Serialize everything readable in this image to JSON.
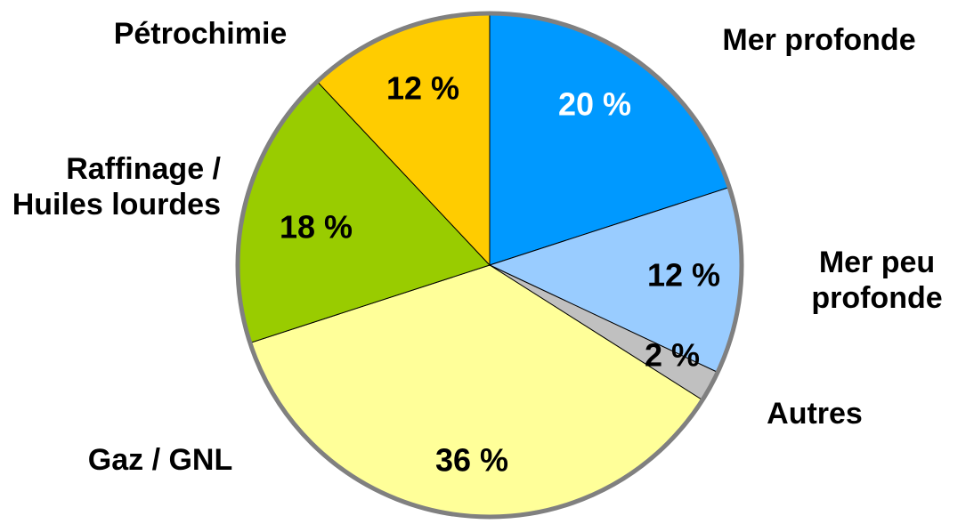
{
  "chart_data": {
    "type": "pie",
    "categories": [
      "Mer profonde",
      "Mer peu profonde",
      "Autres",
      "Gaz / GNL",
      "Raffinage / Huiles lourdes",
      "Pétrochimie"
    ],
    "values": [
      20,
      12,
      2,
      36,
      18,
      12
    ],
    "value_labels": [
      "20 %",
      "12 %",
      "2 %",
      "36 %",
      "18 %",
      "12 %"
    ],
    "colors": [
      "#0099ff",
      "#99ccff",
      "#c0c0c0",
      "#ffff99",
      "#99cc00",
      "#ffcc00"
    ],
    "border_color": "#808080"
  }
}
